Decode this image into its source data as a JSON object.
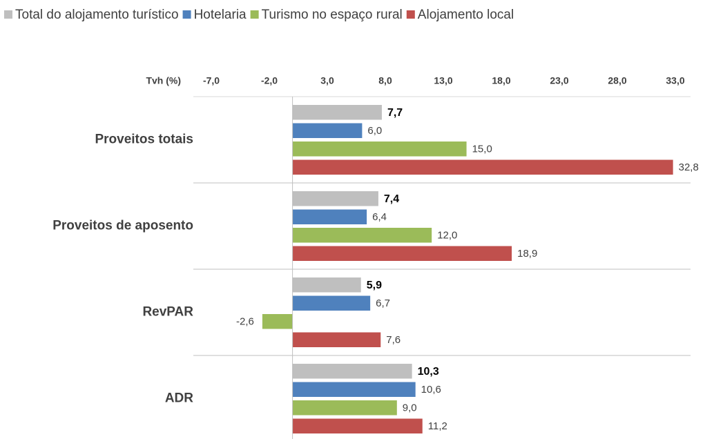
{
  "chart_data": {
    "type": "bar",
    "orientation": "horizontal",
    "xlabel": "Tvh (%)",
    "categories": [
      "Proveitos totais",
      "Proveitos de aposento",
      "RevPAR",
      "ADR"
    ],
    "series": [
      {
        "name": "Total do alojamento turístico",
        "color": "#bfbfbf",
        "values": [
          7.7,
          7.4,
          5.9,
          10.3
        ],
        "value_labels": [
          "7,7",
          "7,4",
          "5,9",
          "10,3"
        ],
        "bold_labels": true
      },
      {
        "name": "Hotelaria",
        "color": "#4f81bd",
        "values": [
          6.0,
          6.4,
          6.7,
          10.6
        ],
        "value_labels": [
          "6,0",
          "6,4",
          "6,7",
          "10,6"
        ]
      },
      {
        "name": "Turismo no espaço rural",
        "color": "#9bbb59",
        "values": [
          15.0,
          12.0,
          -2.6,
          9.0
        ],
        "value_labels": [
          "15,0",
          "12,0",
          "-2,6",
          "9,0"
        ]
      },
      {
        "name": "Alojamento local",
        "color": "#c0504d",
        "values": [
          32.8,
          18.9,
          7.6,
          11.2
        ],
        "value_labels": [
          "32,8",
          "18,9",
          "7,6",
          "11,2"
        ]
      }
    ],
    "xlim": [
      -7,
      33
    ],
    "xticks": [
      {
        "value": -7,
        "label": "-7,0"
      },
      {
        "value": -2,
        "label": "-2,0"
      },
      {
        "value": 3,
        "label": "3,0"
      },
      {
        "value": 8,
        "label": "8,0"
      },
      {
        "value": 13,
        "label": "13,0"
      },
      {
        "value": 18,
        "label": "18,0"
      },
      {
        "value": 23,
        "label": "23,0"
      },
      {
        "value": 28,
        "label": "28,0"
      },
      {
        "value": 33,
        "label": "33,0"
      }
    ],
    "grid": false,
    "legend": "top"
  }
}
